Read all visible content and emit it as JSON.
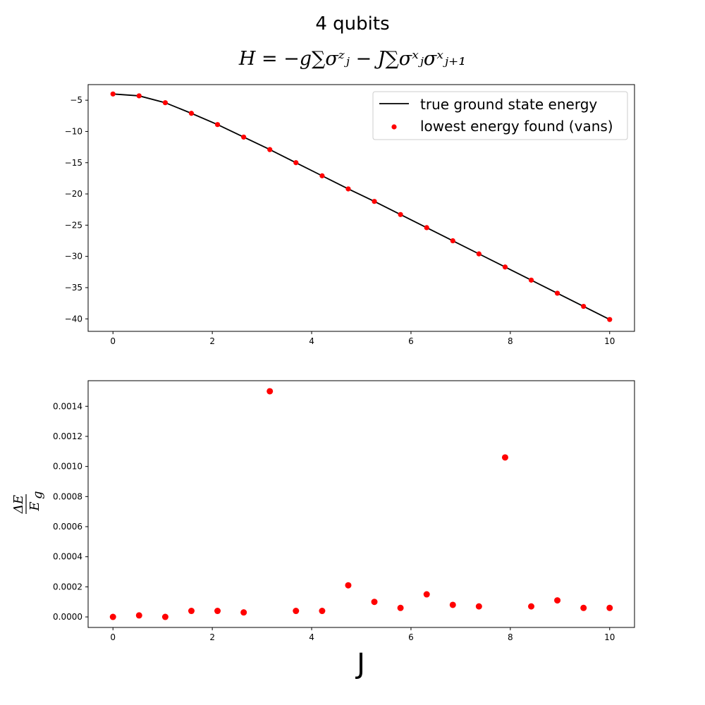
{
  "figure": {
    "title_line1": "4 qubits",
    "title_line2": "H = −g∑σᶻⱼ − J∑σˣⱼσˣⱼ₊₁"
  },
  "colors": {
    "line": "#000000",
    "marker": "#ff0000"
  },
  "chart_data": [
    {
      "type": "line",
      "title": "",
      "xlabel": "",
      "ylabel": "",
      "xlim": [
        -0.5,
        10.5
      ],
      "ylim": [
        -42,
        -2.5
      ],
      "x_ticks": [
        0,
        2,
        4,
        6,
        8,
        10
      ],
      "x_tick_labels": [
        "0",
        "2",
        "4",
        "6",
        "8",
        "10"
      ],
      "y_ticks": [
        -5,
        -10,
        -15,
        -20,
        -25,
        -30,
        -35,
        -40
      ],
      "y_tick_labels": [
        "−5",
        "−10",
        "−15",
        "−20",
        "−25",
        "−30",
        "−35",
        "−40"
      ],
      "legend_position": "top-right",
      "series": [
        {
          "name": "true ground state energy",
          "kind": "line",
          "x": [
            0,
            0.526,
            1.053,
            1.579,
            2.105,
            2.632,
            3.158,
            3.684,
            4.211,
            4.737,
            5.263,
            5.789,
            6.316,
            6.842,
            7.368,
            7.895,
            8.421,
            8.947,
            9.474,
            10
          ],
          "y": [
            -4.0,
            -4.3,
            -5.4,
            -7.1,
            -8.9,
            -10.9,
            -12.9,
            -15.0,
            -17.1,
            -19.2,
            -21.2,
            -23.3,
            -25.4,
            -27.5,
            -29.6,
            -31.7,
            -33.8,
            -35.9,
            -38.0,
            -40.1
          ]
        },
        {
          "name": "lowest energy found (vans)",
          "kind": "scatter",
          "x": [
            0,
            0.526,
            1.053,
            1.579,
            2.105,
            2.632,
            3.158,
            3.684,
            4.211,
            4.737,
            5.263,
            5.789,
            6.316,
            6.842,
            7.368,
            7.895,
            8.421,
            8.947,
            9.474,
            10
          ],
          "y": [
            -4.0,
            -4.3,
            -5.4,
            -7.1,
            -8.9,
            -10.9,
            -12.9,
            -15.0,
            -17.1,
            -19.2,
            -21.2,
            -23.3,
            -25.4,
            -27.5,
            -29.6,
            -31.7,
            -33.8,
            -35.9,
            -38.0,
            -40.1
          ]
        }
      ]
    },
    {
      "type": "scatter",
      "title": "",
      "xlabel": "J",
      "ylabel": "ΔE / E_g",
      "ylabel_numerator": "ΔE",
      "ylabel_denominator": "E",
      "ylabel_denominator_sub": "g",
      "xlim": [
        -0.5,
        10.5
      ],
      "ylim": [
        -7e-05,
        0.00157
      ],
      "x_ticks": [
        0,
        2,
        4,
        6,
        8,
        10
      ],
      "x_tick_labels": [
        "0",
        "2",
        "4",
        "6",
        "8",
        "10"
      ],
      "y_ticks": [
        0,
        0.0002,
        0.0004,
        0.0006,
        0.0008,
        0.001,
        0.0012,
        0.0014
      ],
      "y_tick_labels": [
        "0.0000",
        "0.0002",
        "0.0004",
        "0.0006",
        "0.0008",
        "0.0010",
        "0.0012",
        "0.0014"
      ],
      "series": [
        {
          "kind": "scatter",
          "x": [
            0,
            0.526,
            1.053,
            1.579,
            2.105,
            2.632,
            3.158,
            3.684,
            4.211,
            4.737,
            5.263,
            5.789,
            6.316,
            6.842,
            7.368,
            7.895,
            8.421,
            8.947,
            9.474,
            10
          ],
          "y": [
            0.0,
            1e-05,
            0.0,
            4e-05,
            4e-05,
            3e-05,
            0.0015,
            4e-05,
            4e-05,
            0.00021,
            0.0001,
            6e-05,
            0.00015,
            8e-05,
            7e-05,
            0.00106,
            7e-05,
            0.00011,
            6e-05,
            6e-05
          ]
        }
      ]
    }
  ]
}
